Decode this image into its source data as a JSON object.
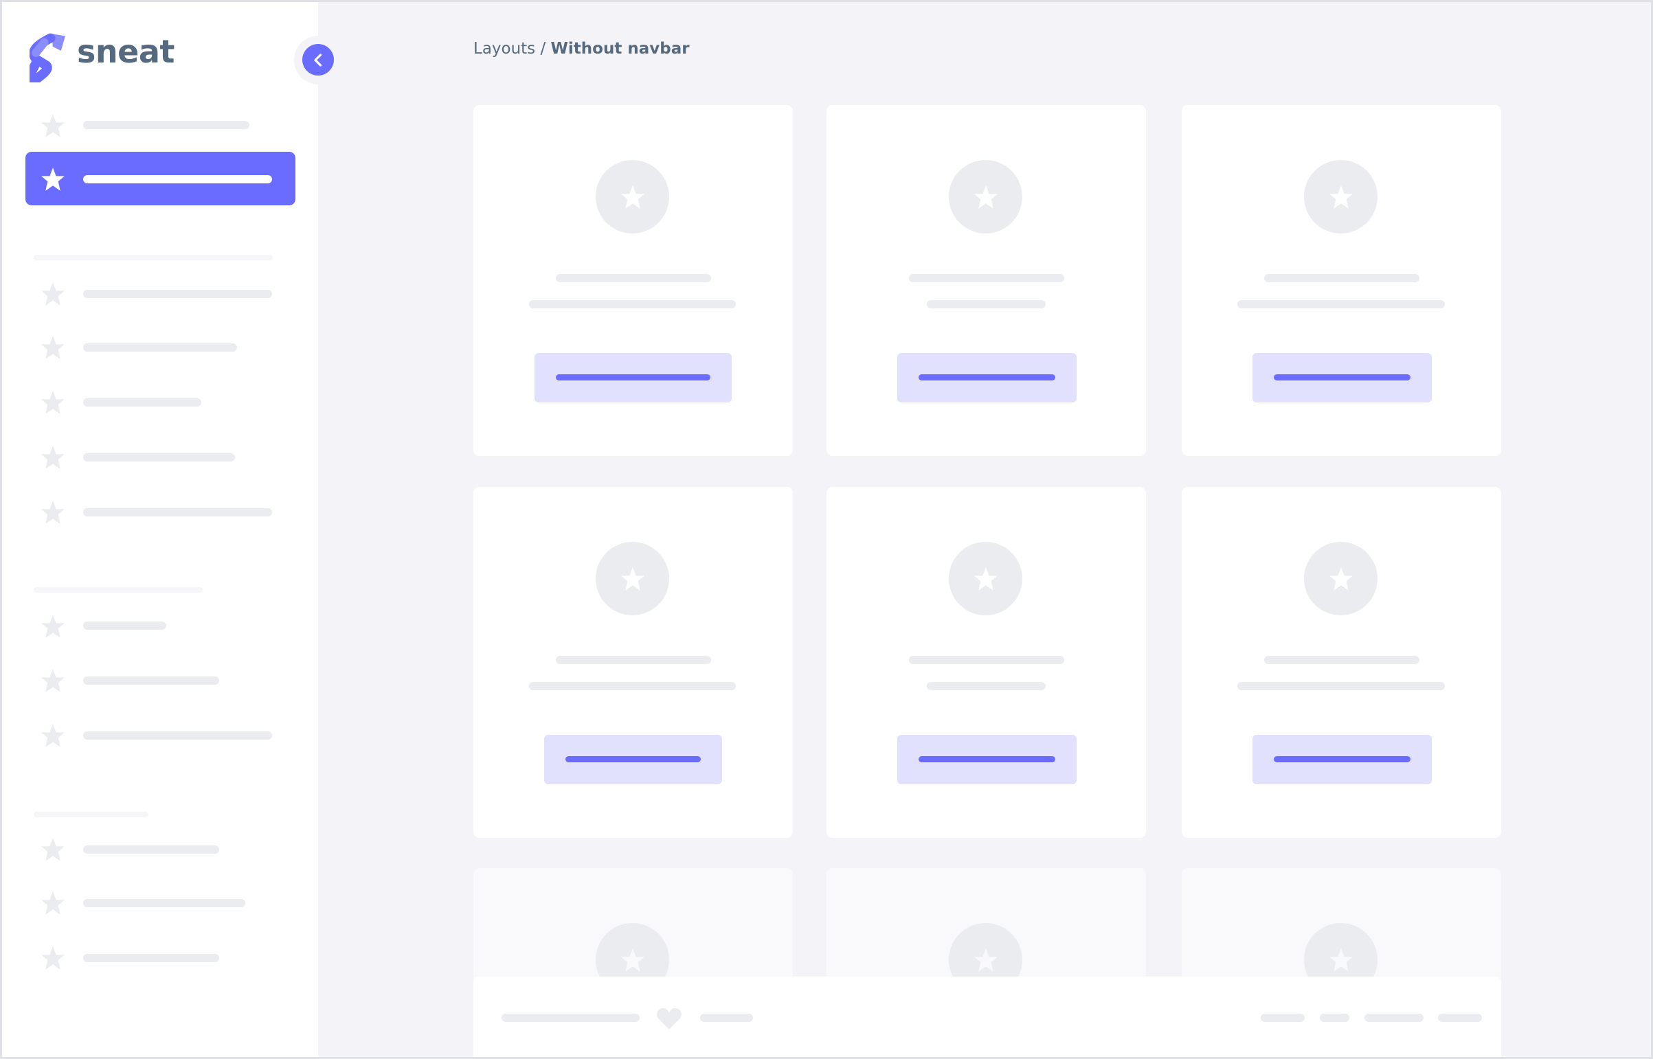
{
  "app": {
    "logo_text": "sneat",
    "brand_color": "#696cff"
  },
  "sidebar": {
    "collapse_icon": "chevron-left-icon",
    "item_icon": "star-icon",
    "active_index": 1
  },
  "breadcrumb": {
    "parent": "Layouts",
    "separator": " / ",
    "current": "Without navbar"
  },
  "footer": {
    "icon": "heart-icon"
  }
}
